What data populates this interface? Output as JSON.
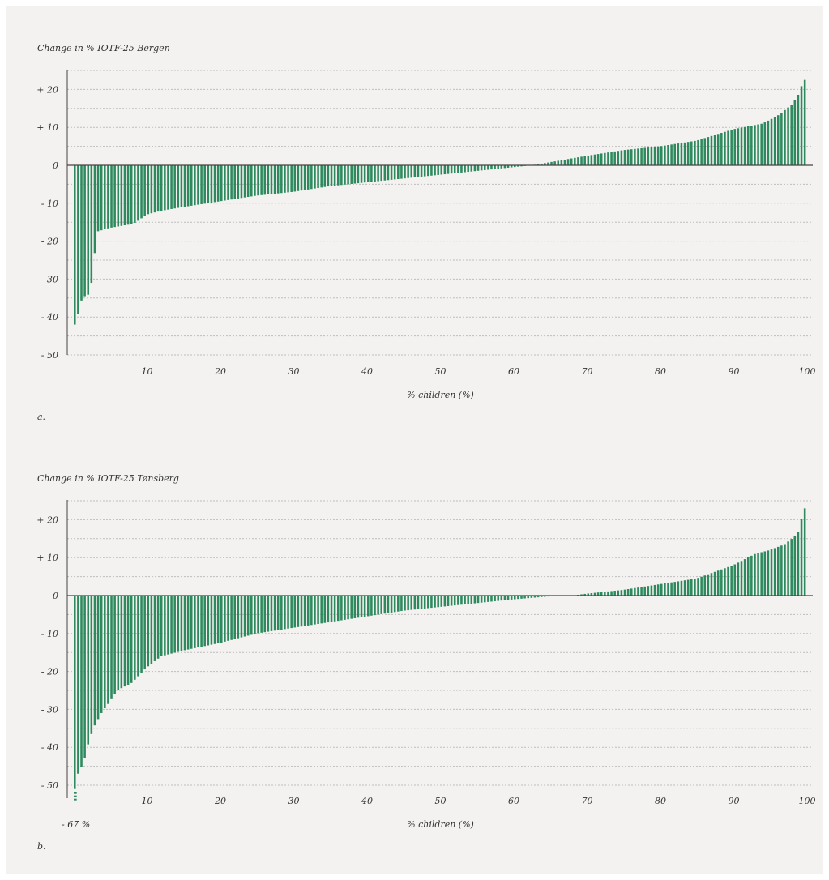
{
  "colors": {
    "bar": "#2e8a5e",
    "axis": "#444444",
    "grid": "#bdbdbd",
    "background": "#f3f2f0"
  },
  "chart_data": [
    {
      "type": "bar",
      "panel": "a.",
      "title": "Change in % IOTF-25 Bergen",
      "xlabel": "% children (%)",
      "ylabel": "",
      "ylim": [
        -50,
        25
      ],
      "yticks": [
        20,
        10,
        0,
        -10,
        -20,
        -30,
        -40,
        -50
      ],
      "ytick_labels": [
        "+ 20",
        "+ 10",
        "0",
        "- 10",
        "- 20",
        "- 30",
        "- 40",
        "- 50"
      ],
      "xlim": [
        0,
        100
      ],
      "xticks": [
        10,
        20,
        30,
        40,
        50,
        60,
        70,
        80,
        90,
        100
      ],
      "grid": "horizontal dashed every 5",
      "curve_points_x": [
        0.4,
        1.0,
        1.6,
        2.2,
        2.7,
        3.2,
        5,
        8,
        8.6,
        10,
        12,
        15,
        20,
        25,
        30,
        35,
        40,
        45,
        50,
        55,
        60,
        62.5,
        65,
        70,
        75,
        80,
        85,
        90,
        94,
        96,
        98,
        99,
        99.6
      ],
      "curve_points_y": [
        -42,
        -36,
        -34.5,
        -34,
        -29,
        -17.5,
        -16.5,
        -15.5,
        -15,
        -13,
        -12,
        -11,
        -9.5,
        -8,
        -7,
        -5.5,
        -4.5,
        -3.5,
        -2.5,
        -1.5,
        -0.5,
        0,
        0.8,
        2.5,
        4,
        5,
        6.5,
        9.5,
        11,
        13,
        16,
        19,
        22.5
      ]
    },
    {
      "type": "bar",
      "panel": "b.",
      "title": "Change in % IOTF-25 Tønsberg",
      "xlabel": "% children (%)",
      "ylabel": "",
      "ylim": [
        -50,
        25
      ],
      "yticks": [
        20,
        10,
        0,
        -10,
        -20,
        -30,
        -40,
        -50
      ],
      "ytick_labels": [
        "+ 20",
        "+ 10",
        "0",
        "- 10",
        "- 20",
        "- 30",
        "- 40",
        "- 50"
      ],
      "xlim": [
        0,
        100
      ],
      "xticks": [
        10,
        20,
        30,
        40,
        50,
        60,
        70,
        80,
        90,
        100
      ],
      "grid": "horizontal dashed every 5",
      "annotation": "- 67 %",
      "annotation_value": -67,
      "curve_points_x": [
        0.3,
        0.7,
        1.0,
        1.3,
        1.7,
        2.2,
        2.6,
        3,
        4,
        5,
        6,
        8,
        10,
        12,
        15,
        20,
        25,
        30,
        35,
        40,
        45,
        50,
        55,
        60,
        65,
        68,
        70,
        75,
        80,
        85,
        90,
        93,
        95,
        97,
        98,
        99,
        99.6
      ],
      "curve_points_y": [
        -67,
        -46,
        -45.5,
        -45,
        -42,
        -38,
        -36,
        -34,
        -30.5,
        -28,
        -25,
        -23,
        -19,
        -16,
        -14.5,
        -12.5,
        -10,
        -8.5,
        -7,
        -5.5,
        -4,
        -3,
        -2,
        -1,
        -0.2,
        0,
        0.5,
        1.5,
        3,
        4.5,
        8,
        11,
        12,
        13.5,
        15,
        17,
        23
      ]
    }
  ],
  "labels": {
    "title_a": "Change in % IOTF-25 Bergen",
    "title_b": "Change in % IOTF-25 Tønsberg",
    "panel_a": "a.",
    "panel_b": "b.",
    "xlabel": "% children (%)",
    "annotation_b": "- 67 %"
  }
}
